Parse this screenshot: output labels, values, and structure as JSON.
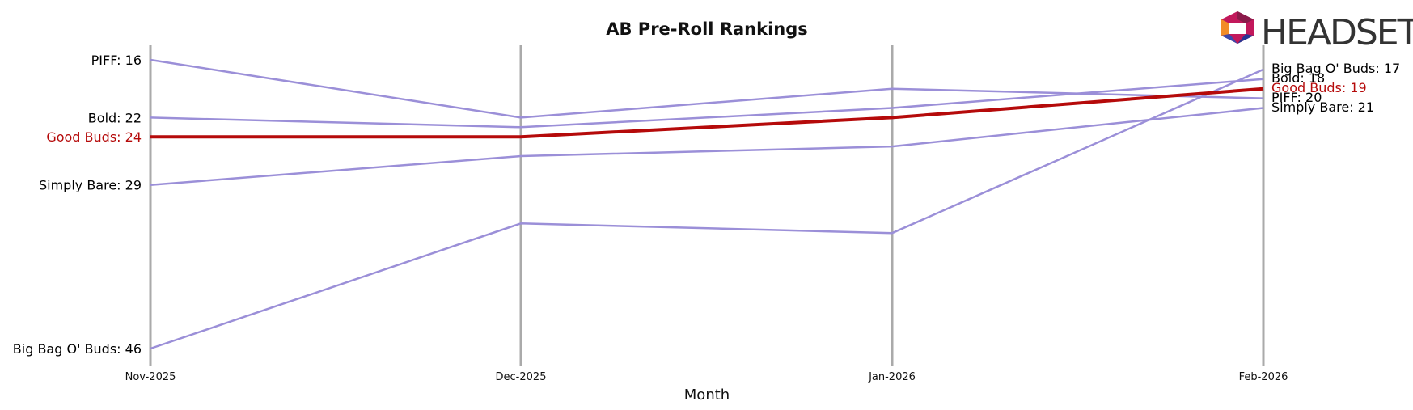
{
  "chart_data": {
    "type": "line",
    "title": "AB Pre-Roll Rankings",
    "xlabel": "Month",
    "ylabel": "",
    "categories": [
      "Nov-2025",
      "Dec-2025",
      "Jan-2026",
      "Feb-2026"
    ],
    "y_axis": "rank (inverted, lower rank at top)",
    "ylim": [
      47,
      15
    ],
    "grid": "vertical lines at each month",
    "series": [
      {
        "name": "PIFF",
        "values": [
          16,
          22,
          19,
          20
        ],
        "color": "#9b8fd8",
        "highlight": false,
        "start_label": "PIFF: 16",
        "end_label": "PIFF: 20"
      },
      {
        "name": "Bold",
        "values": [
          22,
          23,
          21,
          18
        ],
        "color": "#9b8fd8",
        "highlight": false,
        "start_label": "Bold: 22",
        "end_label": "Bold: 18"
      },
      {
        "name": "Good Buds",
        "values": [
          24,
          24,
          22,
          19
        ],
        "color": "#b50a0a",
        "highlight": true,
        "start_label": "Good Buds: 24",
        "end_label": "Good Buds: 19"
      },
      {
        "name": "Simply Bare",
        "values": [
          29,
          26,
          25,
          21
        ],
        "color": "#9b8fd8",
        "highlight": false,
        "start_label": "Simply Bare: 29",
        "end_label": "Simply Bare: 21"
      },
      {
        "name": "Big Bag O' Buds",
        "values": [
          46,
          33,
          34,
          17
        ],
        "color": "#9b8fd8",
        "highlight": false,
        "start_label": "Big Bag O' Buds: 46",
        "end_label": "Big Bag O' Buds: 17"
      }
    ]
  },
  "logo": {
    "text": "HEADSET",
    "icon": "headset-logo-icon"
  }
}
